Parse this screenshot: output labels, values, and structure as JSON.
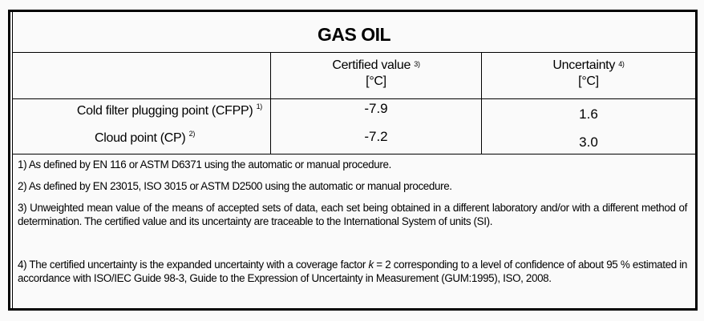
{
  "title": "GAS OIL",
  "headers": {
    "certified_value": "Certified value",
    "certified_value_ref": "3)",
    "certified_value_unit": "[°C]",
    "uncertainty": "Uncertainty",
    "uncertainty_ref": "4)",
    "uncertainty_unit": "[°C]"
  },
  "rows": [
    {
      "label": "Cold filter plugging point (CFPP)",
      "ref": "1)",
      "value": "-7.9",
      "uncertainty": "1.6"
    },
    {
      "label": "Cloud point (CP)",
      "ref": "2)",
      "value": "-7.2",
      "uncertainty": "3.0"
    }
  ],
  "notes": {
    "n1": "1) As defined by EN 116 or ASTM D6371 using the automatic or manual procedure.",
    "n2": "2) As defined by EN 23015, ISO 3015 or ASTM D2500 using the automatic or manual procedure.",
    "n3": "3) Unweighted mean value of the means of accepted sets of data, each set being obtained in a different laboratory and/or with a different method of determination. The certified value and its uncertainty are traceable to the International System of units (SI).",
    "n4_pre": "4) The certified uncertainty is the expanded uncertainty with a coverage factor ",
    "n4_k": "k",
    "n4_post": " = 2 corresponding to a level of confidence of about 95 % estimated in accordance with ISO/IEC Guide 98-3, Guide to the Expression of Uncertainty in Measurement (GUM:1995), ISO, 2008."
  }
}
